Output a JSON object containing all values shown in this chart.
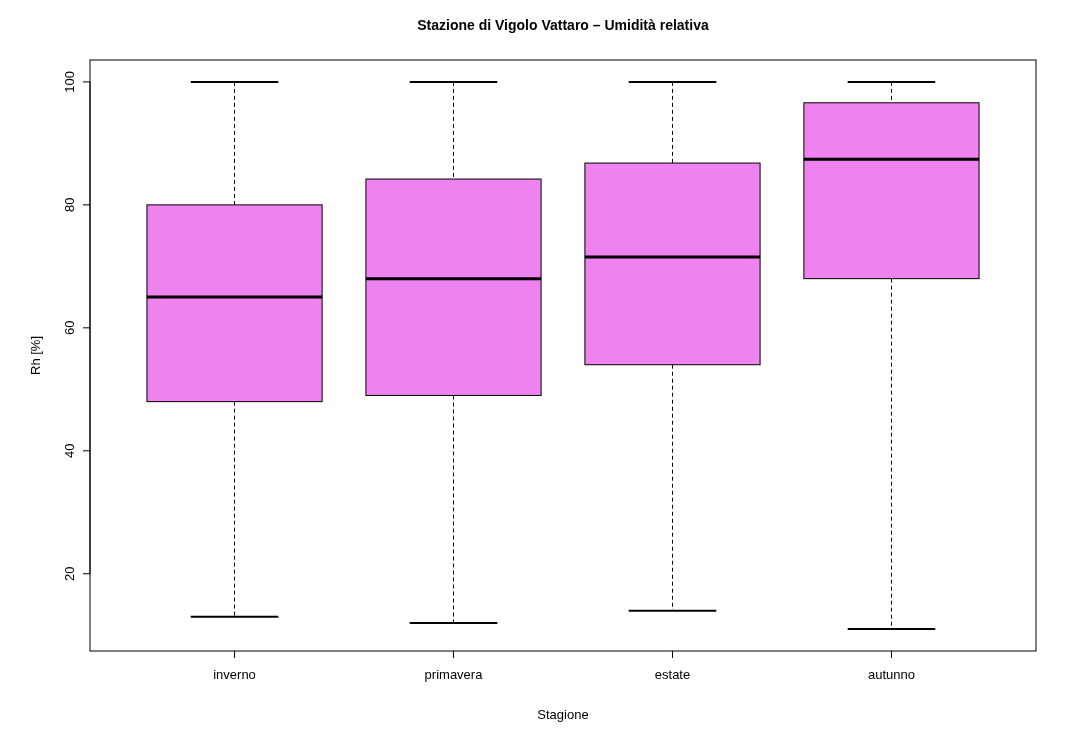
{
  "chart_data": {
    "type": "box",
    "title": "Stazione di Vigolo Vattaro – Umidità relativa",
    "xlabel": "Stagione",
    "ylabel": "Rh [%]",
    "categories": [
      "inverno",
      "primavera",
      "estate",
      "autunno"
    ],
    "color": "#ee82ee",
    "boxes": [
      {
        "low": 13,
        "q1": 48,
        "median": 65,
        "q3": 80,
        "high": 100
      },
      {
        "low": 12,
        "q1": 49,
        "median": 68,
        "q3": 84.2,
        "high": 100
      },
      {
        "low": 14,
        "q1": 54,
        "median": 71.5,
        "q3": 86.8,
        "high": 100
      },
      {
        "low": 11,
        "q1": 68,
        "median": 87.4,
        "q3": 96.6,
        "high": 100
      }
    ],
    "ylim": [
      7.44,
      103.56
    ],
    "yticks": [
      20,
      40,
      60,
      80,
      100
    ]
  }
}
